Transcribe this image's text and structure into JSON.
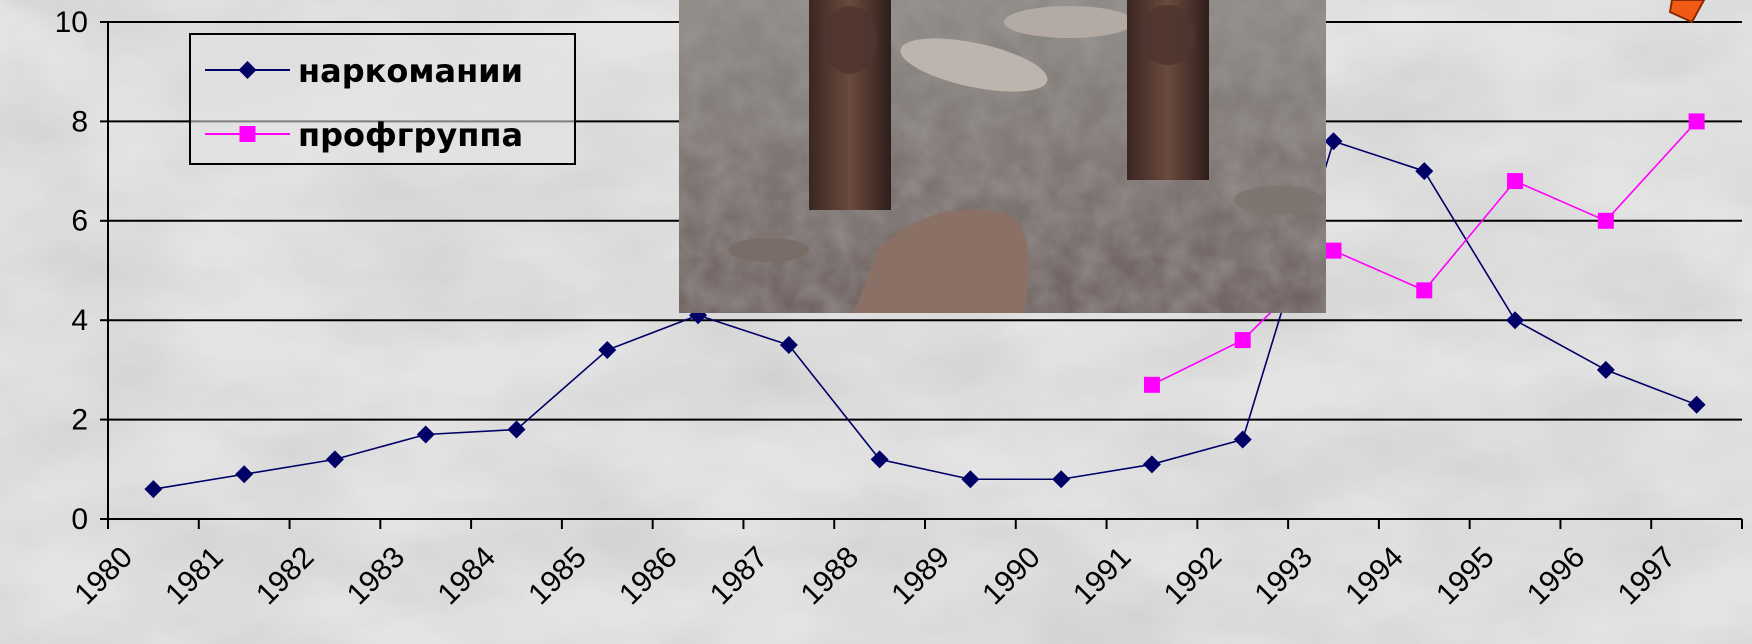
{
  "chart_data": {
    "type": "line",
    "categories": [
      "1980",
      "1981",
      "1982",
      "1983",
      "1984",
      "1985",
      "1986",
      "1987",
      "1988",
      "1989",
      "1990",
      "1991",
      "1992",
      "1993",
      "1994",
      "1995",
      "1996",
      "1997"
    ],
    "series": [
      {
        "name": "наркомании",
        "color": "#000066",
        "marker": "diamond",
        "values": [
          0.6,
          0.9,
          1.2,
          1.7,
          1.8,
          3.4,
          4.1,
          3.5,
          1.2,
          0.8,
          0.8,
          1.1,
          1.6,
          7.6,
          7.0,
          4.0,
          3.0,
          2.3
        ]
      },
      {
        "name": "профгруппа",
        "color": "#ff00ff",
        "marker": "square",
        "values": [
          null,
          null,
          null,
          null,
          null,
          null,
          null,
          null,
          null,
          null,
          null,
          2.7,
          3.6,
          5.4,
          4.6,
          6.8,
          6.0,
          8.0
        ]
      }
    ],
    "yticks": [
      "0",
      "2",
      "4",
      "6",
      "8",
      "10"
    ],
    "ylim": [
      0,
      10
    ],
    "grid": "horizontal",
    "legend_position": "top-left"
  },
  "decorations": {
    "photo": "inset photo of carved stone idols among scattered rocks",
    "corner_shape": "orange square"
  }
}
